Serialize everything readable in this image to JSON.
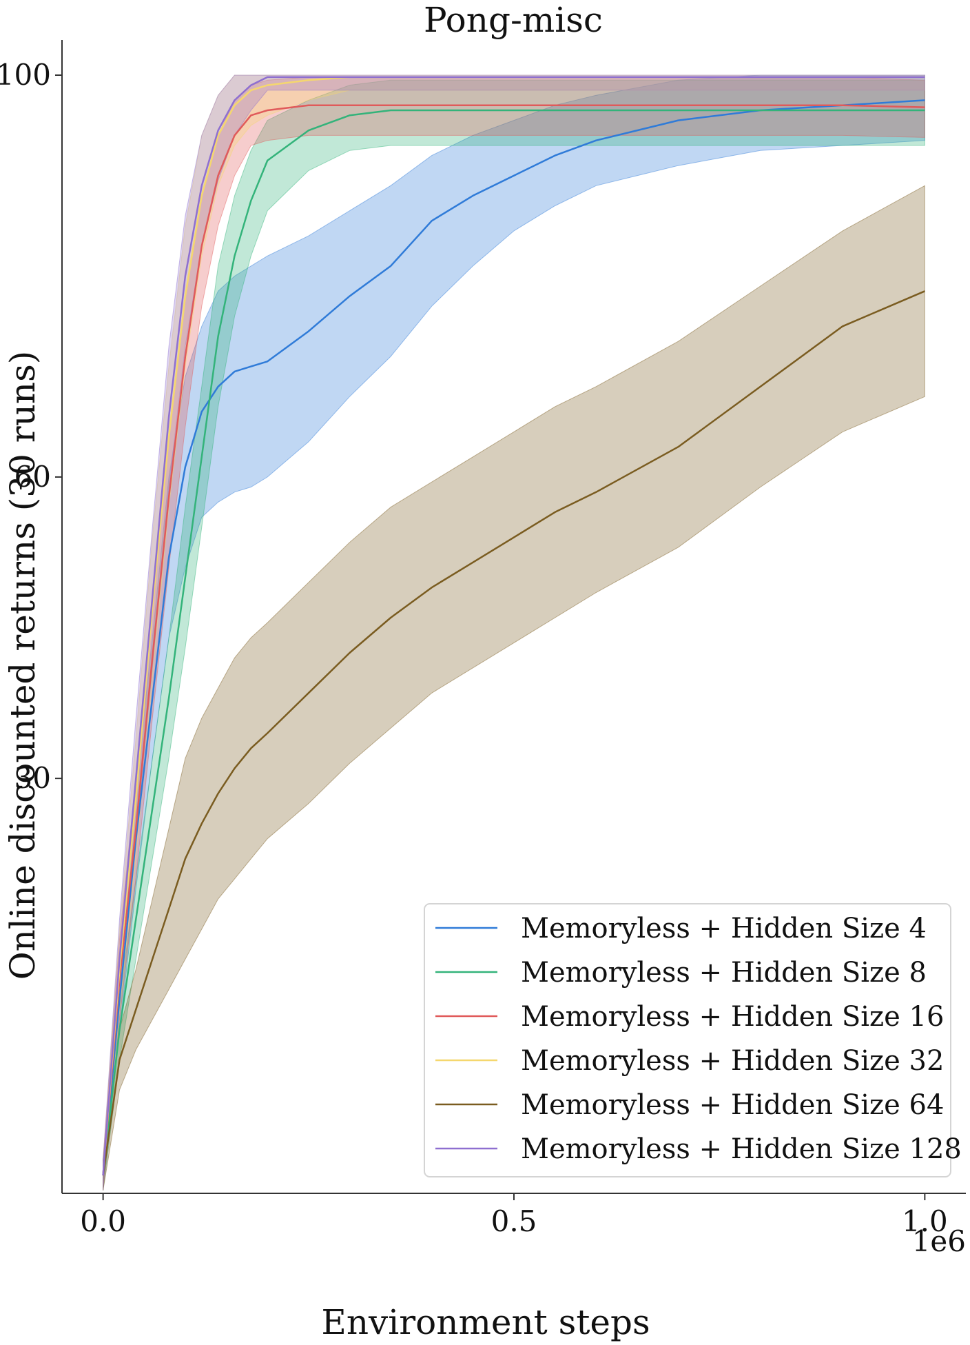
{
  "chart_data": {
    "type": "line",
    "title": "Pong-misc",
    "xlabel": "Environment steps",
    "ylabel": "Online discounted returns (30 runs)",
    "x_offset_label": "1e6",
    "xlim": [
      -0.05,
      1.05
    ],
    "ylim": [
      -11.3,
      103.5
    ],
    "xticks": [
      0.0,
      0.5,
      1.0
    ],
    "xtick_labels": [
      "0.0",
      "0.5",
      "1.0"
    ],
    "yticks": [
      100,
      30,
      60
    ],
    "ytick_labels": [
      "100",
      "30",
      "60"
    ],
    "grid": false,
    "legend": {
      "position": "bottom-right"
    },
    "x": [
      0.0,
      0.02,
      0.04,
      0.06,
      0.08,
      0.1,
      0.12,
      0.14,
      0.16,
      0.18,
      0.2,
      0.25,
      0.3,
      0.35,
      0.4,
      0.45,
      0.5,
      0.55,
      0.6,
      0.7,
      0.8,
      0.9,
      1.0
    ],
    "series": [
      {
        "name": "Memoryless + Hidden Size 4",
        "color": "#2f7bd8",
        "values": [
          -9.5,
          8.0,
          24.0,
          38.0,
          52.0,
          61.0,
          66.5,
          69.0,
          70.5,
          71.0,
          71.5,
          74.5,
          78.0,
          81.0,
          85.5,
          88.0,
          90.0,
          92.0,
          93.5,
          95.5,
          96.5,
          97.0,
          97.5
        ],
        "lower": [
          -11.0,
          5.0,
          19.0,
          32.0,
          44.0,
          51.0,
          56.0,
          57.5,
          58.5,
          59.0,
          60.0,
          63.5,
          68.0,
          72.0,
          77.0,
          81.0,
          84.5,
          87.0,
          89.0,
          91.0,
          92.5,
          93.0,
          93.5
        ],
        "upper": [
          -8.0,
          11.0,
          29.0,
          44.0,
          60.0,
          70.0,
          75.0,
          78.5,
          80.0,
          81.0,
          82.0,
          84.0,
          86.5,
          89.0,
          92.0,
          94.0,
          95.5,
          97.0,
          98.0,
          99.5,
          100.0,
          100.0,
          100.0
        ]
      },
      {
        "name": "Memoryless + Hidden Size 8",
        "color": "#33b37a",
        "values": [
          -9.5,
          5.0,
          16.0,
          27.0,
          38.0,
          50.0,
          62.0,
          74.0,
          82.0,
          87.5,
          91.5,
          94.5,
          96.0,
          96.5,
          96.5,
          96.5,
          96.5,
          96.5,
          96.5,
          96.5,
          96.5,
          96.5,
          96.5
        ],
        "lower": [
          -11.0,
          2.0,
          12.0,
          22.0,
          32.0,
          43.0,
          55.0,
          67.0,
          76.0,
          82.0,
          86.5,
          90.5,
          92.5,
          93.0,
          93.0,
          93.0,
          93.0,
          93.0,
          93.0,
          93.0,
          93.0,
          93.0,
          93.0
        ],
        "upper": [
          -8.0,
          8.0,
          20.0,
          32.0,
          44.0,
          57.0,
          69.0,
          81.0,
          88.0,
          92.5,
          95.5,
          97.5,
          99.0,
          99.5,
          99.5,
          99.5,
          99.5,
          99.5,
          99.5,
          99.5,
          99.5,
          99.5,
          99.5
        ]
      },
      {
        "name": "Memoryless + Hidden Size 16",
        "color": "#e05a5a",
        "values": [
          -9.5,
          10.0,
          25.0,
          42.0,
          58.0,
          72.0,
          83.0,
          90.0,
          94.0,
          96.0,
          96.5,
          97.0,
          97.0,
          97.0,
          97.0,
          97.0,
          97.0,
          97.0,
          97.0,
          97.0,
          97.0,
          97.0,
          96.8
        ],
        "lower": [
          -11.0,
          6.0,
          20.0,
          36.0,
          51.0,
          65.0,
          77.0,
          85.0,
          90.0,
          93.0,
          93.5,
          94.0,
          94.0,
          94.0,
          94.0,
          94.0,
          94.0,
          94.0,
          94.0,
          94.0,
          94.0,
          94.0,
          93.8
        ],
        "upper": [
          -8.0,
          14.0,
          30.0,
          48.0,
          64.0,
          78.0,
          88.0,
          94.0,
          97.5,
          99.0,
          99.5,
          99.8,
          99.8,
          99.8,
          99.8,
          99.8,
          99.8,
          99.8,
          99.8,
          99.8,
          99.8,
          99.8,
          99.5
        ]
      },
      {
        "name": "Memoryless + Hidden Size 32",
        "color": "#f5d76e",
        "values": [
          -9.5,
          11.0,
          28.0,
          47.0,
          64.0,
          78.0,
          88.0,
          94.0,
          97.0,
          98.5,
          99.0,
          99.5,
          99.8,
          99.8,
          99.8,
          99.8,
          99.8,
          99.8,
          99.8,
          99.8,
          99.8,
          99.8,
          99.8
        ],
        "lower": [
          -11.0,
          7.0,
          22.0,
          40.0,
          57.0,
          71.0,
          82.0,
          89.0,
          93.0,
          95.0,
          96.0,
          97.5,
          98.5,
          98.5,
          98.5,
          98.5,
          98.5,
          98.5,
          98.5,
          98.5,
          98.5,
          98.5,
          98.5
        ],
        "upper": [
          -8.0,
          15.0,
          34.0,
          54.0,
          71.0,
          85.0,
          94.0,
          98.0,
          100.0,
          100.0,
          100.0,
          100.0,
          100.0,
          100.0,
          100.0,
          100.0,
          100.0,
          100.0,
          100.0,
          100.0,
          100.0,
          100.0,
          100.0
        ]
      },
      {
        "name": "Memoryless + Hidden Size 64",
        "color": "#7a5c20",
        "values": [
          -9.5,
          2.0,
          7.0,
          12.0,
          17.0,
          22.0,
          25.5,
          28.5,
          31.0,
          33.0,
          34.5,
          38.5,
          42.5,
          46.0,
          49.0,
          51.5,
          54.0,
          56.5,
          58.5,
          63.0,
          69.0,
          75.0,
          78.5
        ],
        "lower": [
          -11.0,
          -1.0,
          3.0,
          6.0,
          9.0,
          12.0,
          15.0,
          18.0,
          20.0,
          22.0,
          24.0,
          27.5,
          31.5,
          35.0,
          38.5,
          41.0,
          43.5,
          46.0,
          48.5,
          53.0,
          59.0,
          64.5,
          68.0
        ],
        "upper": [
          -8.0,
          5.0,
          11.0,
          18.0,
          25.0,
          32.0,
          36.0,
          39.0,
          42.0,
          44.0,
          45.5,
          49.5,
          53.5,
          57.0,
          59.5,
          62.0,
          64.5,
          67.0,
          69.0,
          73.5,
          79.0,
          84.5,
          89.0
        ]
      },
      {
        "name": "Memoryless + Hidden Size 128",
        "color": "#8e6fd0",
        "values": [
          -9.5,
          12.0,
          30.0,
          48.0,
          66.0,
          80.0,
          89.0,
          94.5,
          97.5,
          99.0,
          99.8,
          99.8,
          99.8,
          99.8,
          99.8,
          99.8,
          99.8,
          99.8,
          99.8,
          99.8,
          99.8,
          99.8,
          99.8
        ],
        "lower": [
          -11.0,
          8.0,
          24.0,
          41.0,
          59.0,
          73.0,
          83.0,
          89.5,
          94.0,
          96.5,
          98.5,
          98.5,
          98.5,
          98.5,
          98.5,
          98.5,
          98.5,
          98.5,
          98.5,
          98.5,
          98.5,
          98.5,
          98.5
        ],
        "upper": [
          -8.0,
          16.0,
          36.0,
          55.0,
          73.0,
          86.0,
          94.0,
          98.0,
          100.0,
          100.0,
          100.0,
          100.0,
          100.0,
          100.0,
          100.0,
          100.0,
          100.0,
          100.0,
          100.0,
          100.0,
          100.0,
          100.0,
          100.0
        ]
      }
    ]
  }
}
